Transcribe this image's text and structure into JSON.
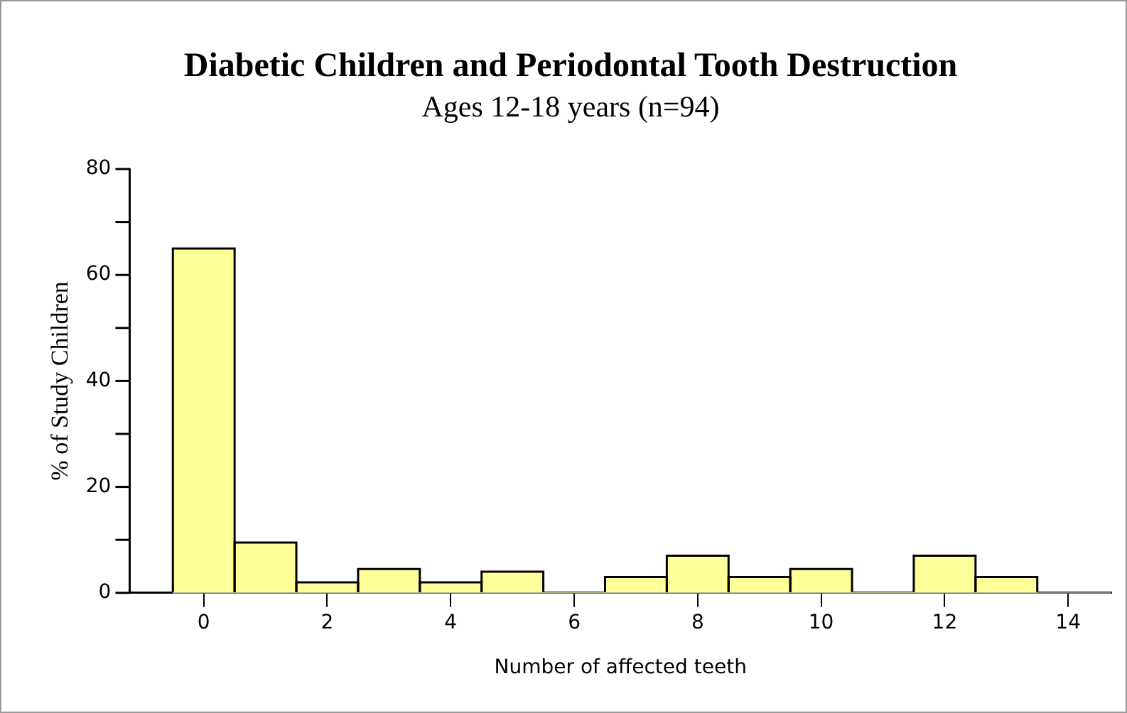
{
  "chart_data": {
    "type": "histogram",
    "title": "Diabetic Children and Periodontal Tooth Destruction",
    "subtitle": "Ages 12-18 years (n=94)",
    "xlabel": "Number of affected teeth",
    "ylabel": "% of Study Children",
    "bins": [
      -0.5,
      0.5,
      1.5,
      2.5,
      3.5,
      4.5,
      5.5,
      6.5,
      7.5,
      8.5,
      9.5,
      10.5,
      11.5,
      12.5,
      13.5
    ],
    "values": [
      65,
      9.5,
      2,
      4.5,
      2,
      4,
      0,
      3,
      7,
      3,
      4.5,
      0,
      7,
      3
    ],
    "color": "#ffff99",
    "xlim": [
      -1.2,
      14.7
    ],
    "xticks": [
      0,
      2,
      4,
      6,
      8,
      10,
      12,
      14
    ],
    "ylim": [
      0,
      80
    ],
    "yticks": [
      0,
      {
        "value": 10,
        "label": null
      },
      20,
      {
        "value": 30,
        "label": null
      },
      40,
      {
        "value": 50,
        "label": null
      },
      60,
      {
        "value": 70,
        "label": null
      },
      80
    ],
    "grid": false,
    "legend": false
  }
}
